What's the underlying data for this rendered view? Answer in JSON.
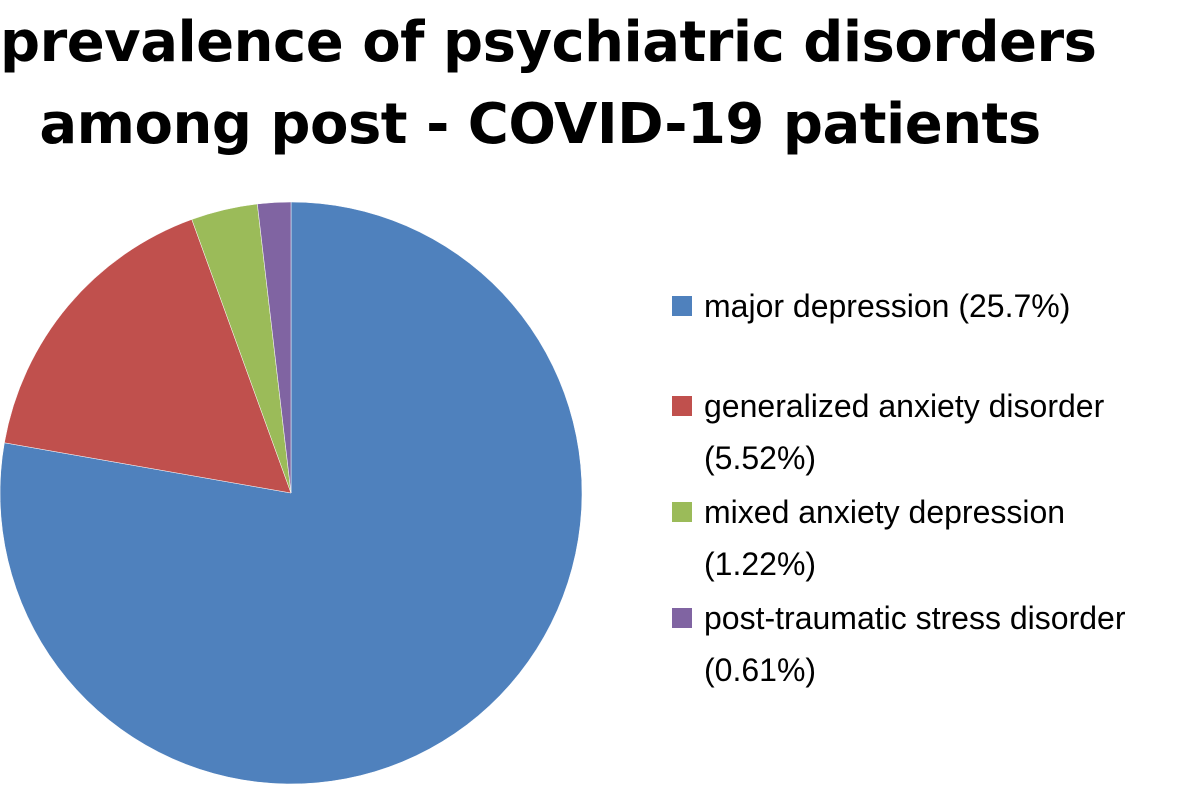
{
  "chart_data": {
    "type": "pie",
    "title": "prevalence of psychiatric disorders among post - COVID-19 patients",
    "title_lines": [
      "prevalence of psychiatric disorders",
      "among post - COVID-19 patients"
    ],
    "categories": [
      "major depression (25.7%)",
      "generalized anxiety disorder (5.52%)",
      "mixed anxiety depression (1.22%)",
      "post-traumatic stress disorder (0.61%)"
    ],
    "values": [
      25.7,
      5.52,
      1.22,
      0.61
    ],
    "colors": [
      "#4F81BD",
      "#C0504D",
      "#9BBB59",
      "#8064A2"
    ],
    "start_angle": "12 o'clock",
    "direction": "clockwise",
    "legend_position": "right"
  }
}
